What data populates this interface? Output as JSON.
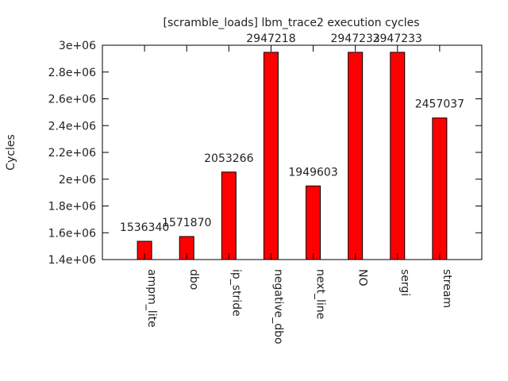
{
  "chart_data": {
    "type": "bar",
    "title": "[scramble_loads] lbm_trace2  execution cycles",
    "xlabel": "",
    "ylabel": "Cycles",
    "categories": [
      "ampm_lite",
      "dbo",
      "ip_stride",
      "negative_dbo",
      "next_line",
      "NO",
      "sergi",
      "stream"
    ],
    "values": [
      1536340,
      1571870,
      2053266,
      2947218,
      1949603,
      2947233,
      2947233,
      2457037
    ],
    "data_labels": [
      "1536340",
      "1571870",
      "2053266",
      "2947218",
      "1949603",
      "2947233",
      "2947233",
      "2457037"
    ],
    "ylim": [
      1400000,
      3000000
    ],
    "yticks": [
      1400000,
      1600000,
      1800000,
      2000000,
      2200000,
      2400000,
      2600000,
      2800000,
      3000000
    ],
    "ytick_labels": [
      "1.4e+06",
      "1.6e+06",
      "1.8e+06",
      "2e+06",
      "2.2e+06",
      "2.4e+06",
      "2.6e+06",
      "2.8e+06",
      "3e+06"
    ],
    "grid": false,
    "bar_color": "#ff0000"
  }
}
